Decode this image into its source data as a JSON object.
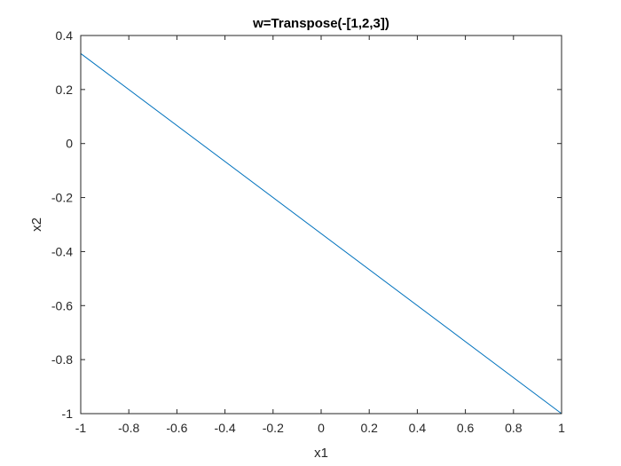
{
  "chart_data": {
    "type": "line",
    "title": "w=Transpose(-[1,2,3])",
    "xlabel": "x1",
    "ylabel": "x2",
    "xlim": [
      -1,
      1
    ],
    "ylim": [
      -1,
      0.4
    ],
    "xticks": [
      -1,
      -0.8,
      -0.6,
      -0.4,
      -0.2,
      0,
      0.2,
      0.4,
      0.6,
      0.8,
      1
    ],
    "xtick_labels": [
      "-1",
      "-0.8",
      "-0.6",
      "-0.4",
      "-0.2",
      "0",
      "0.2",
      "0.4",
      "0.6",
      "0.8",
      "1"
    ],
    "yticks": [
      -1,
      -0.8,
      -0.6,
      -0.4,
      -0.2,
      0,
      0.2,
      0.4
    ],
    "ytick_labels": [
      "-1",
      "-0.8",
      "-0.6",
      "-0.4",
      "-0.2",
      "0",
      "0.2",
      "0.4"
    ],
    "grid": false,
    "series": [
      {
        "x": [
          -1,
          1
        ],
        "y": [
          0.3333,
          -1
        ],
        "color": "#0072bd"
      }
    ]
  }
}
